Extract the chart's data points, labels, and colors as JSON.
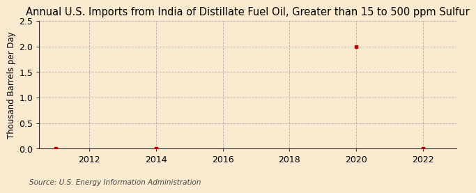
{
  "title": "Annual U.S. Imports from India of Distillate Fuel Oil, Greater than 15 to 500 ppm Sulfur",
  "ylabel": "Thousand Barrels per Day",
  "source": "Source: U.S. Energy Information Administration",
  "background_color": "#faebd0",
  "plot_bg_color": "#faebd0",
  "data_x": [
    2011,
    2014,
    2020,
    2022
  ],
  "data_y": [
    0.0,
    0.0,
    2.0,
    0.0
  ],
  "marker_color": "#cc0000",
  "marker_size": 3.5,
  "grid_color": "#aaaaaa",
  "ylim": [
    0,
    2.5
  ],
  "yticks": [
    0.0,
    0.5,
    1.0,
    1.5,
    2.0,
    2.5
  ],
  "xlim": [
    2010.5,
    2023
  ],
  "xticks": [
    2012,
    2014,
    2016,
    2018,
    2020,
    2022
  ],
  "title_fontsize": 10.5,
  "label_fontsize": 8.5,
  "tick_fontsize": 9,
  "source_fontsize": 7.5
}
